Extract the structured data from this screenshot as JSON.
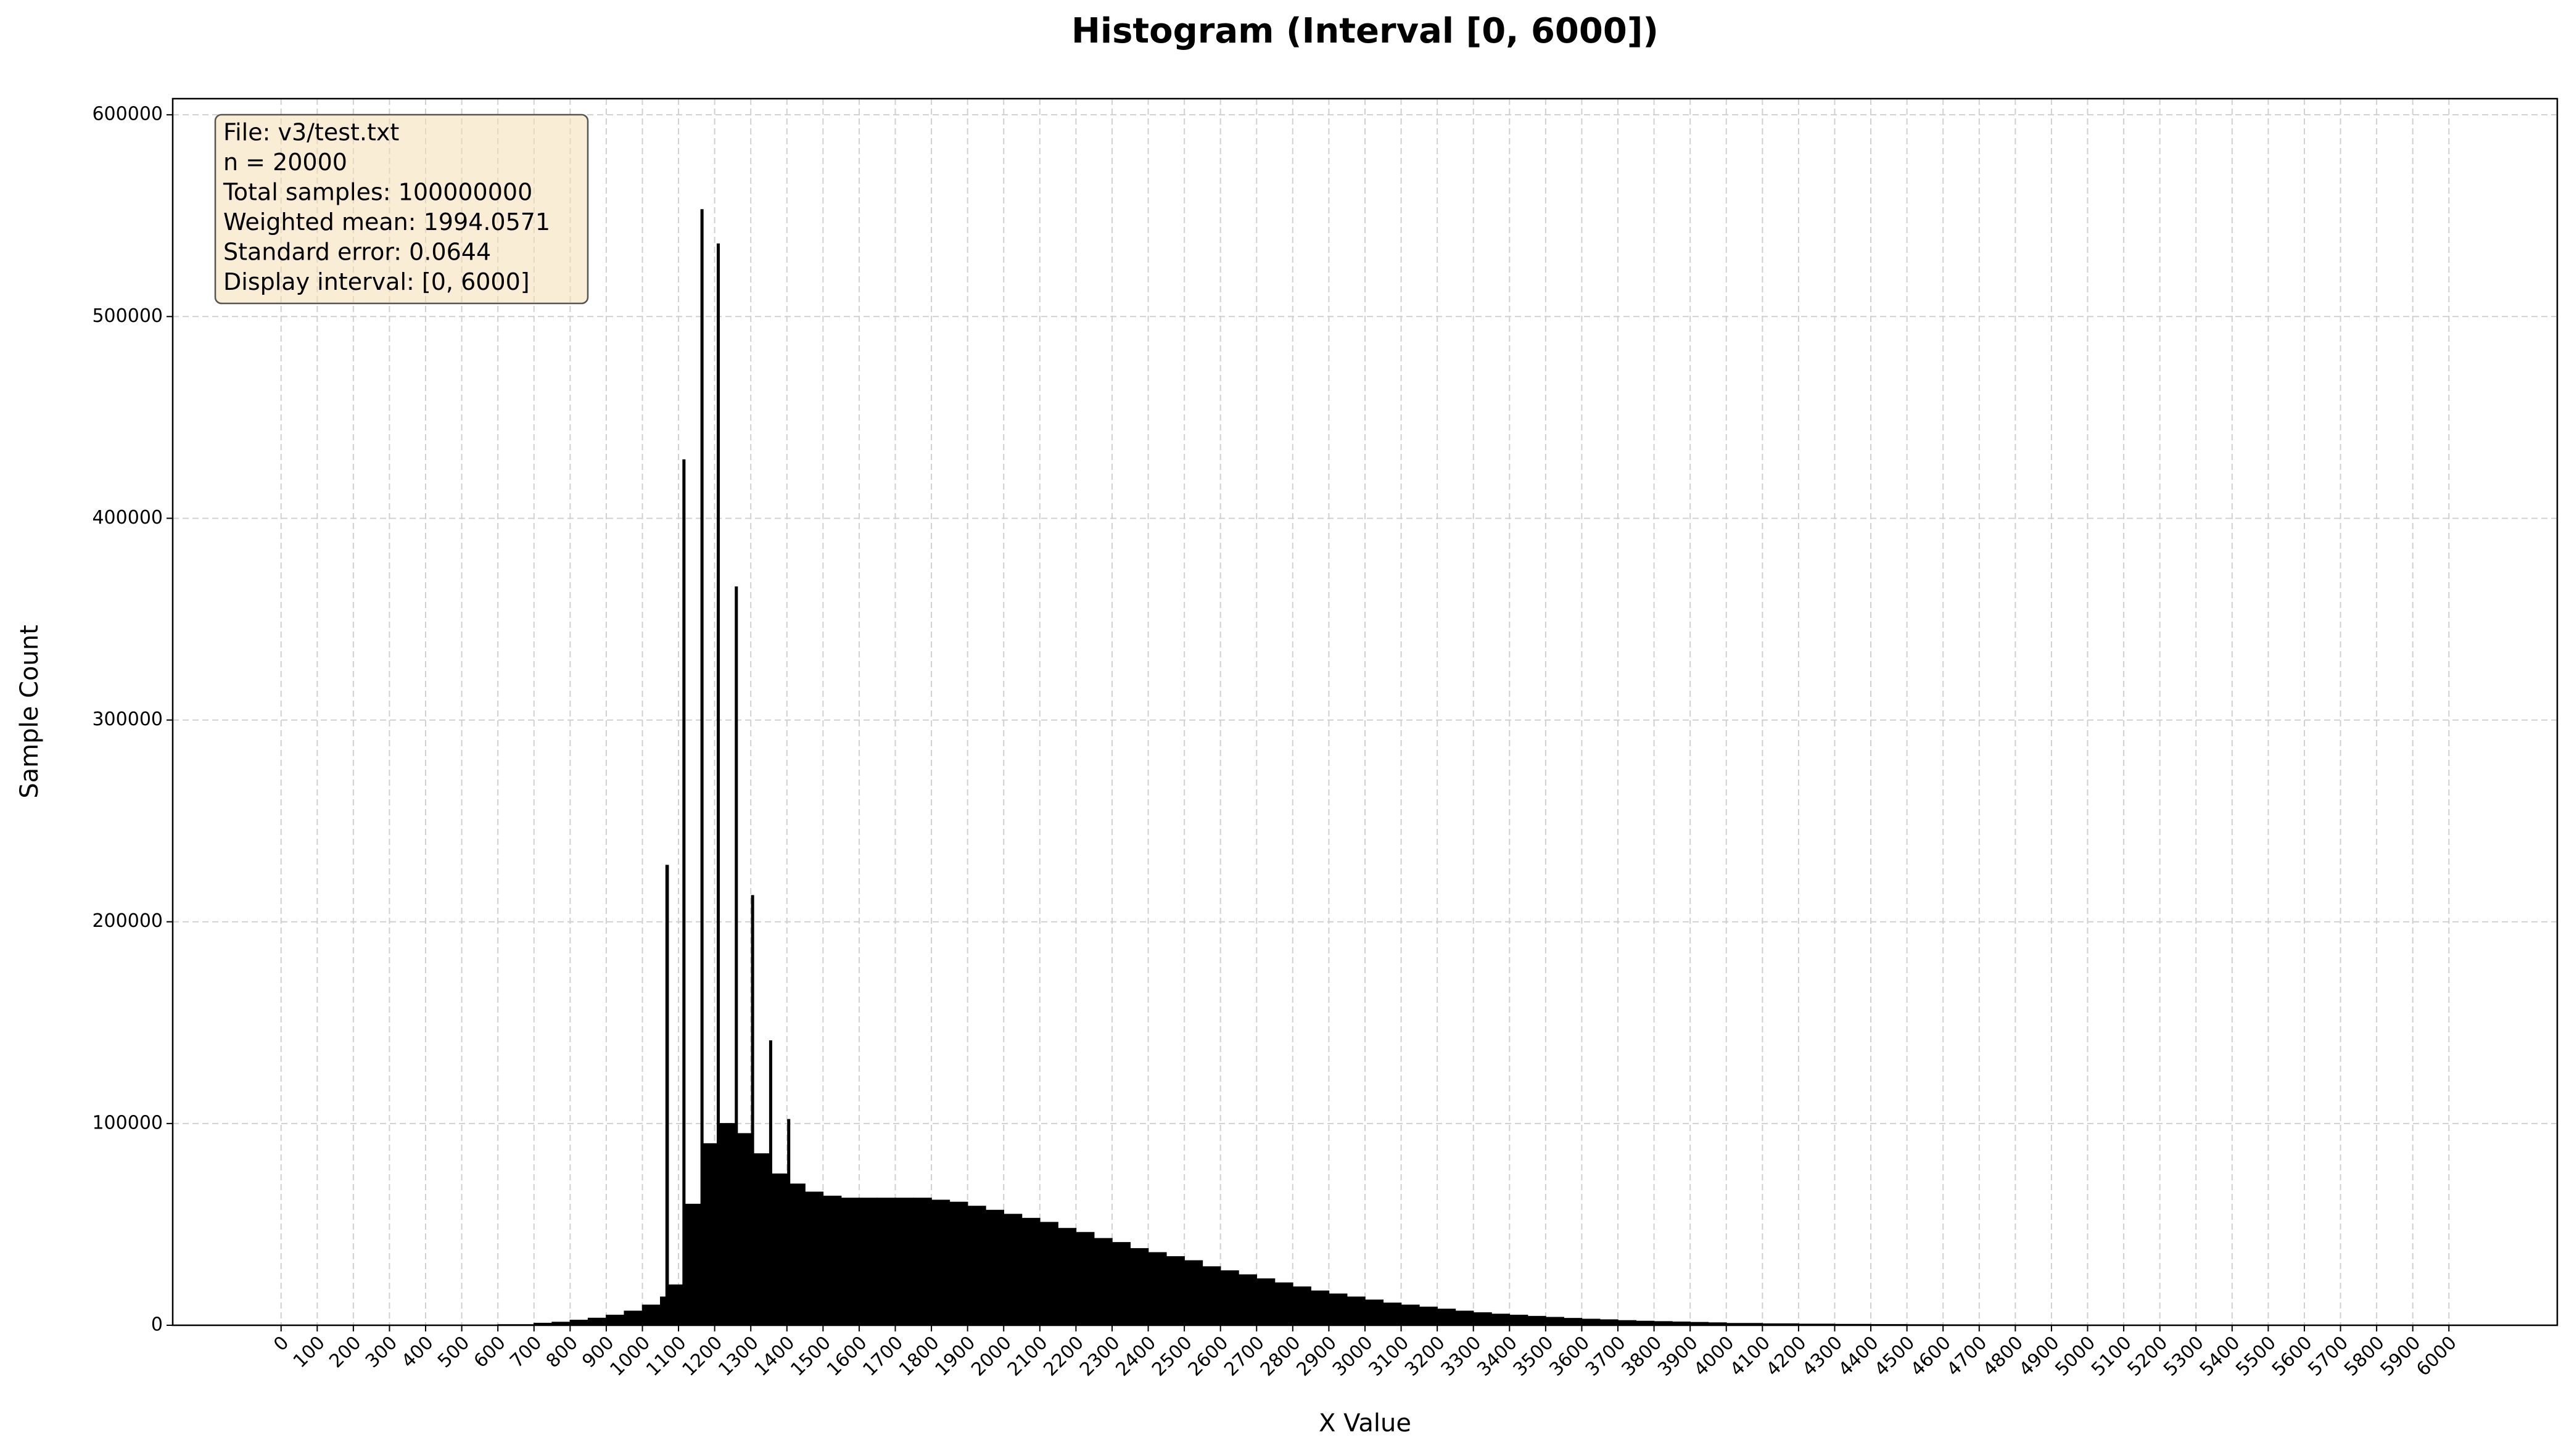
{
  "chart_data": {
    "type": "histogram",
    "title": "Histogram (Interval [0, 6000])",
    "x_label": "X Value",
    "y_label": "Sample Count",
    "annotation": [
      "File: v3/test.txt",
      "n = 20000",
      "Total samples: 100000000",
      "Weighted mean: 1994.0571",
      "Standard error: 0.0644",
      "Display interval: [0, 6000]"
    ],
    "bins": [
      0,
      100,
      200,
      300,
      400,
      500,
      600,
      700,
      750,
      800,
      850,
      900,
      950,
      1000,
      1050,
      1065,
      1072,
      1112,
      1118,
      1162,
      1168,
      1207,
      1213,
      1257,
      1263,
      1302,
      1308,
      1352,
      1358,
      1402,
      1408,
      1450,
      1500,
      1550,
      1600,
      1650,
      1700,
      1750,
      1800,
      1850,
      1900,
      1950,
      2000,
      2050,
      2100,
      2150,
      2200,
      2250,
      2300,
      2350,
      2400,
      2450,
      2500,
      2550,
      2600,
      2650,
      2700,
      2750,
      2800,
      2850,
      2900,
      2950,
      3000,
      3050,
      3100,
      3150,
      3200,
      3250,
      3300,
      3350,
      3400,
      3450,
      3500,
      3550,
      3600,
      3650,
      3700,
      3750,
      3800,
      3850,
      3900,
      3950,
      4000,
      4100,
      4200,
      4300,
      4400,
      4500,
      4600,
      4700,
      4800,
      4900,
      5000,
      6000
    ],
    "counts": [
      0,
      0,
      0,
      0,
      0,
      0,
      300,
      1000,
      1500,
      2500,
      3500,
      5000,
      7000,
      10000,
      14000,
      228000,
      20000,
      429000,
      60000,
      553000,
      90000,
      536000,
      100000,
      366000,
      95000,
      213000,
      85000,
      141000,
      75000,
      102000,
      70000,
      66000,
      64000,
      63000,
      63000,
      63000,
      63000,
      63000,
      62000,
      61000,
      59000,
      57000,
      55000,
      53000,
      51000,
      48000,
      46000,
      43000,
      41000,
      38000,
      36000,
      34000,
      32000,
      29000,
      27000,
      25000,
      23000,
      21000,
      19000,
      17000,
      15500,
      14000,
      12500,
      11000,
      10000,
      9000,
      8000,
      7000,
      6200,
      5500,
      5000,
      4400,
      3900,
      3400,
      3000,
      2700,
      2300,
      2000,
      1800,
      1600,
      1400,
      1200,
      900,
      700,
      550,
      450,
      350,
      280,
      220,
      170,
      130,
      100,
      50
    ],
    "color": "#000000",
    "xlim": [
      -300,
      6300
    ],
    "ylim": [
      0,
      608000
    ],
    "xticks": [
      0,
      100,
      200,
      300,
      400,
      500,
      600,
      700,
      800,
      900,
      1000,
      1100,
      1200,
      1300,
      1400,
      1500,
      1600,
      1700,
      1800,
      1900,
      2000,
      2100,
      2200,
      2300,
      2400,
      2500,
      2600,
      2700,
      2800,
      2900,
      3000,
      3100,
      3200,
      3300,
      3400,
      3500,
      3600,
      3700,
      3800,
      3900,
      4000,
      4100,
      4200,
      4300,
      4400,
      4500,
      4600,
      4700,
      4800,
      4900,
      5000,
      5100,
      5200,
      5300,
      5400,
      5500,
      5600,
      5700,
      5800,
      5900,
      6000
    ],
    "yticks": [
      0,
      100000,
      200000,
      300000,
      400000,
      500000,
      600000
    ],
    "grid": true
  }
}
